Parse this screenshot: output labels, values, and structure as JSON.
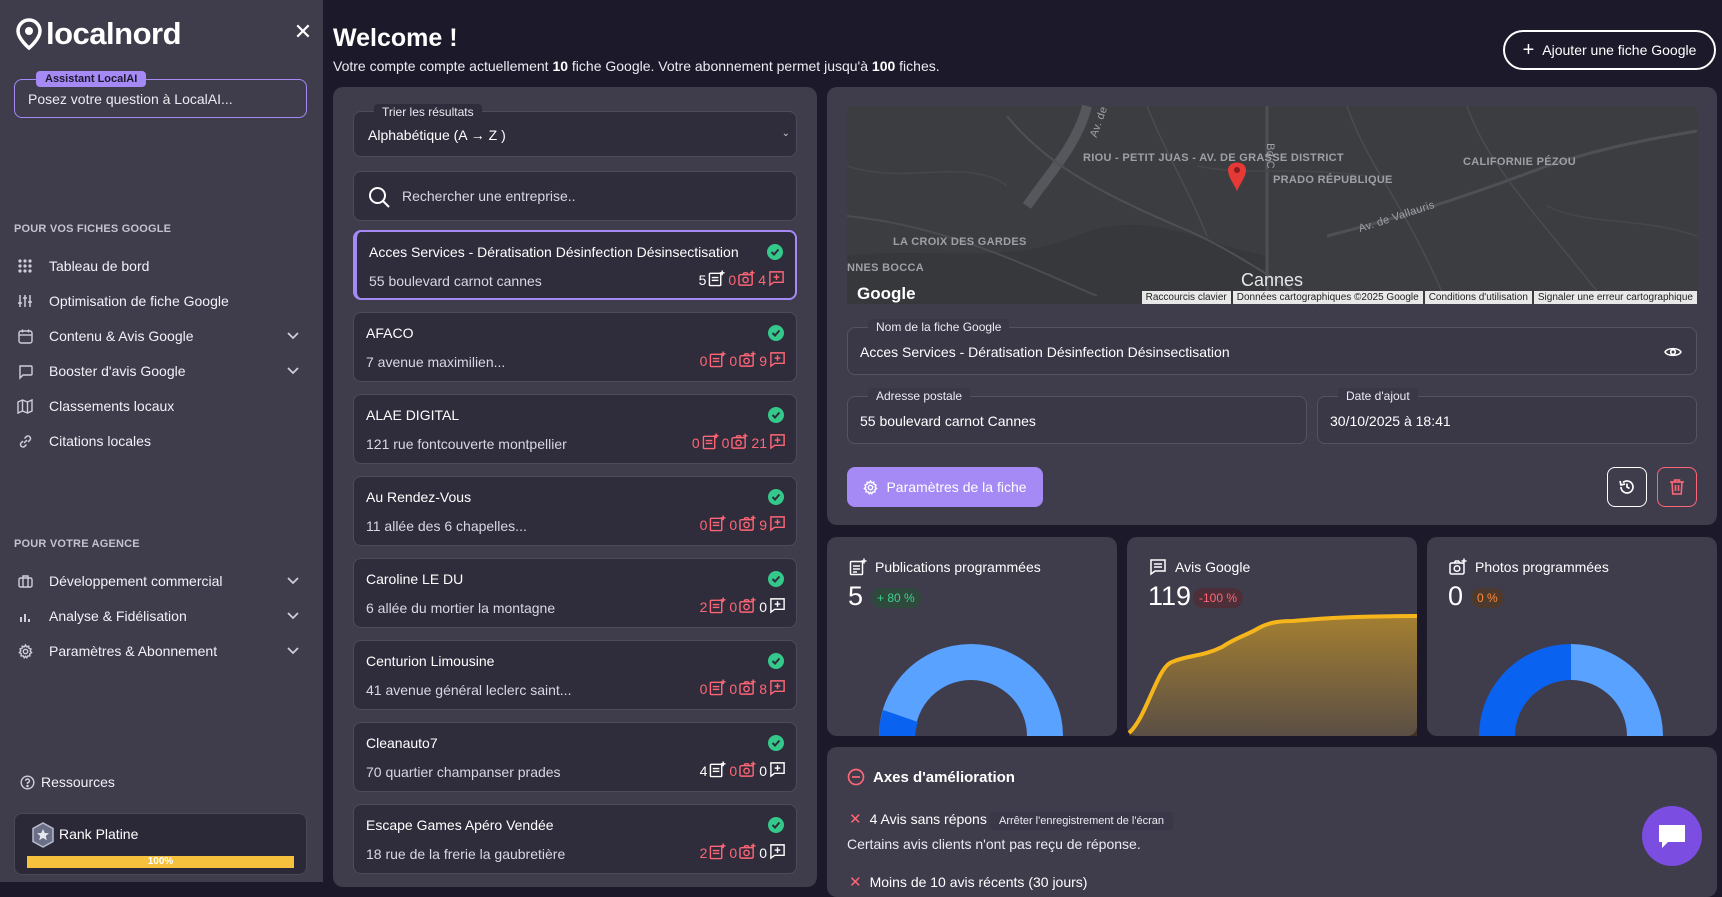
{
  "sidebar": {
    "logo_text": "localnord",
    "ai_badge": "Assistant LocalAI",
    "ai_placeholder": "Posez votre question à LocalAI...",
    "section_fiches": "POUR VOS FICHES GOOGLE",
    "section_agence": "POUR VOTRE AGENCE",
    "items": [
      {
        "label": "Tableau de bord",
        "icon": "grid-icon"
      },
      {
        "label": "Optimisation de fiche Google",
        "icon": "sliders-icon"
      },
      {
        "label": "Contenu & Avis Google",
        "icon": "calendar-icon"
      },
      {
        "label": "Booster d'avis Google",
        "icon": "message-icon"
      },
      {
        "label": "Classements locaux",
        "icon": "map-icon"
      },
      {
        "label": "Citations locales",
        "icon": "link-icon"
      },
      {
        "label": "Développement commercial",
        "icon": "briefcase-icon"
      },
      {
        "label": "Analyse & Fidélisation",
        "icon": "bar-chart-icon"
      },
      {
        "label": "Paramètres & Abonnement",
        "icon": "gear-icon"
      }
    ],
    "resources": "Ressources",
    "rank_label": "Rank Platine",
    "rank_progress": "100%"
  },
  "header": {
    "title": "Welcome !",
    "sub_pre": "Votre compte compte actuellement ",
    "sub_count": "10",
    "sub_mid": " fiche Google.  Votre abonnement permet jusqu'à ",
    "sub_max": "100",
    "sub_post": " fiches.",
    "add_button": "Ajouter une fiche Google"
  },
  "list": {
    "sort_legend": "Trier les résultats",
    "sort_value": "Alphabétique (A → Z )",
    "search_placeholder": "Rechercher une entreprise..",
    "businesses": [
      {
        "name": "Acces Services - Dératisation Désinfection Désinsectisation",
        "address": "55 boulevard carnot cannes",
        "posts": "5",
        "photos": "0",
        "reviews": "4",
        "posts_red": false,
        "photos_red": true,
        "reviews_red": true
      },
      {
        "name": "AFACO",
        "address": "7 avenue maximilien...",
        "posts": "0",
        "photos": "0",
        "reviews": "9",
        "posts_red": true,
        "photos_red": true,
        "reviews_red": true
      },
      {
        "name": "ALAE DIGITAL",
        "address": "121 rue fontcouverte montpellier",
        "posts": "0",
        "photos": "0",
        "reviews": "21",
        "posts_red": true,
        "photos_red": true,
        "reviews_red": true
      },
      {
        "name": "Au Rendez-Vous",
        "address": "11 allée des 6 chapelles...",
        "posts": "0",
        "photos": "0",
        "reviews": "9",
        "posts_red": true,
        "photos_red": true,
        "reviews_red": true
      },
      {
        "name": "Caroline LE DU",
        "address": "6 allée du mortier la montagne",
        "posts": "2",
        "photos": "0",
        "reviews": "0",
        "posts_red": true,
        "photos_red": true,
        "reviews_red": false
      },
      {
        "name": "Centurion Limousine",
        "address": "41 avenue général leclerc saint...",
        "posts": "0",
        "photos": "0",
        "reviews": "8",
        "posts_red": true,
        "photos_red": true,
        "reviews_red": true
      },
      {
        "name": "Cleanauto7",
        "address": "70 quartier champanser prades",
        "posts": "4",
        "photos": "0",
        "reviews": "0",
        "posts_red": false,
        "photos_red": true,
        "reviews_red": false
      },
      {
        "name": "Escape Games Apéro Vendée",
        "address": "18 rue de la frerie la gaubretière",
        "posts": "2",
        "photos": "0",
        "reviews": "0",
        "posts_red": true,
        "photos_red": true,
        "reviews_red": false
      }
    ]
  },
  "map": {
    "labels": [
      "RIOU - PETIT JUAS - AV. DE GRASSE DISTRICT",
      "PRADO RÉPUBLIQUE",
      "CALIFORNIE PÉZOU",
      "LA CROIX DES GARDES",
      "NNES BOCCA",
      "Av. de Vallauris",
      "Bd C",
      "Av. de"
    ],
    "city": "Cannes",
    "google": "Google",
    "footer": [
      "Raccourcis clavier",
      "Données cartographiques ©2025 Google",
      "Conditions d'utilisation",
      "Signaler une erreur cartographique"
    ]
  },
  "detail": {
    "name_legend": "Nom de la fiche Google",
    "name_value": "Acces Services - Dératisation Désinfection Désinsectisation",
    "address_legend": "Adresse postale",
    "address_value": "55 boulevard carnot Cannes",
    "date_legend": "Date d'ajout",
    "date_value": "30/10/2025 à 18:41",
    "params_button": "Paramètres de la fiche"
  },
  "stats": [
    {
      "title": "Publications programmées",
      "value": "5",
      "pct": "+ 80 %"
    },
    {
      "title": "Avis Google",
      "value": "119",
      "pct": "-100 %"
    },
    {
      "title": "Photos programmées",
      "value": "0",
      "pct": "0 %"
    }
  ],
  "axes": {
    "title": "Axes d'amélioration",
    "item1": "4 Avis sans répons",
    "desc1": "Certains avis clients n'ont pas reçu de réponse.",
    "item2": "Moins de 10 avis récents (30 jours)",
    "tooltip": "Arrêter l'enregistrement de l'écran"
  },
  "colors": {
    "accent": "#a589f5",
    "success": "#34c88a",
    "danger": "#ff6675",
    "rank": "#f6c13c",
    "chart_blue": "#5aa2ff",
    "chart_dark_blue": "#0a63f0",
    "chart_line": "#f6b61b"
  }
}
